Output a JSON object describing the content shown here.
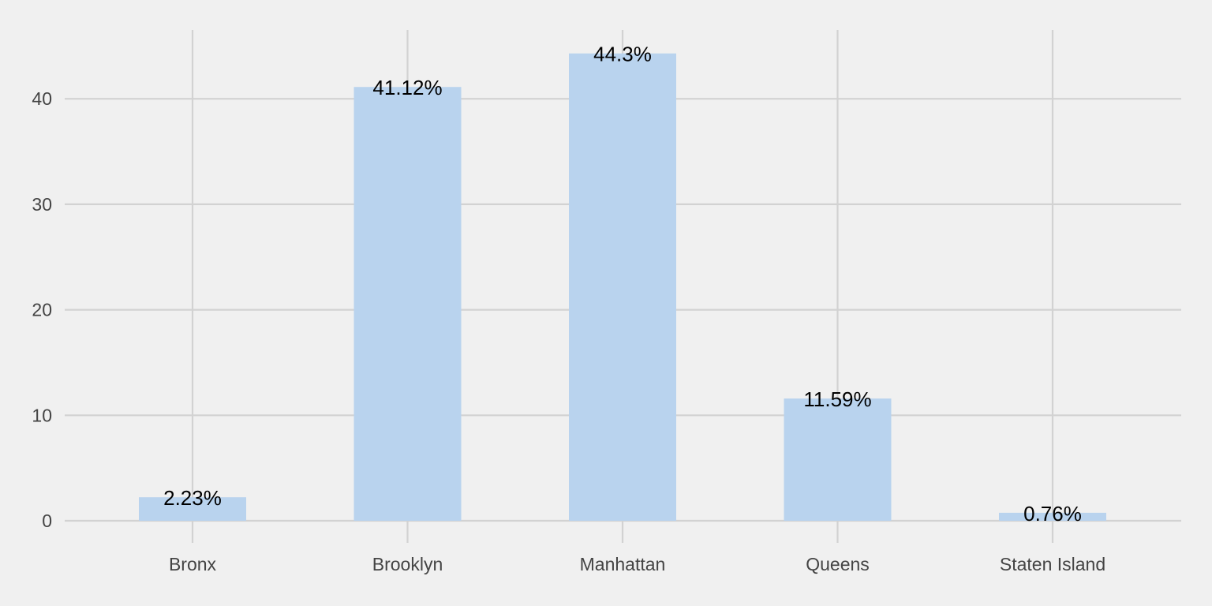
{
  "chart_data": {
    "type": "bar",
    "title": "",
    "xlabel": "",
    "ylabel": "",
    "categories": [
      "Bronx",
      "Brooklyn",
      "Manhattan",
      "Queens",
      "Staten Island"
    ],
    "values": [
      2.23,
      41.12,
      44.3,
      11.59,
      0.76
    ],
    "data_labels": [
      "2.23%",
      "41.12%",
      "44.3%",
      "11.59%",
      "0.76%"
    ],
    "yticks": [
      0,
      10,
      20,
      30,
      40
    ],
    "ylim": [
      0,
      47.5
    ],
    "grid": true,
    "legend": "none",
    "colors": {
      "bar": "#b9d3ee",
      "background": "#f0f0f0",
      "grid": "#d2d2d2",
      "tick_text": "#444444",
      "label_text": "#000000"
    }
  }
}
